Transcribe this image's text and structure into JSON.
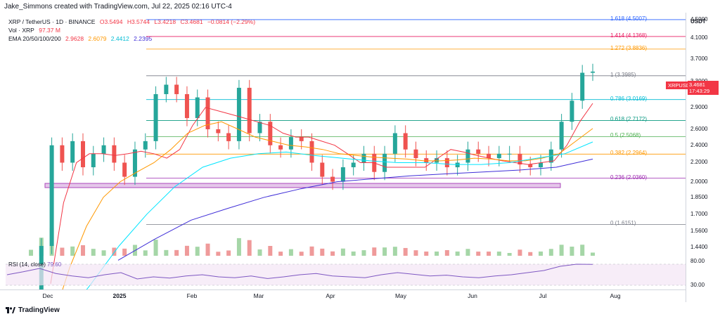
{
  "header": {
    "attribution": "Jake_Simmons created with TradingView.com, Jul 22, 2025 02:16 UTC-4",
    "symbol": "XRP / TetherUS · 1D · BINANCE",
    "o": "O3.5494",
    "h": "H3.5744",
    "l": "L3.4218",
    "c": "C3.4681",
    "chg": "−0.0814 (−2.29%)",
    "vol_label": "Vol · XRP",
    "vol_value": "97.37 M",
    "ema_label": "EMA 20/50/100/200",
    "ema_values": [
      "2.9628",
      "2.6079",
      "2.4412",
      "2.2395"
    ]
  },
  "colors": {
    "up": "#26a69a",
    "down": "#ef5350",
    "ema20": "#f23645",
    "ema50": "#ff9800",
    "ema100": "#00e5ff",
    "ema200": "#3f2ed8",
    "fib_1618": "#2962ff",
    "fib_1414": "#e91e63",
    "fib_1272": "#ff9800",
    "fib_1": "#787b86",
    "fib_0786": "#00bcd4",
    "fib_0618": "#089981",
    "fib_05": "#4caf50",
    "fib_0382": "#ff9800",
    "fib_0236": "#9c27b0",
    "fib_0": "#787b86",
    "rsi": "#7e57c2"
  },
  "y_axis": {
    "currency": "USDT",
    "ticks": [
      "4.5000",
      "4.1000",
      "3.7000",
      "3.3000",
      "2.9000",
      "2.6000",
      "2.4000",
      "2.2000",
      "2.0000",
      "1.8500",
      "1.7000",
      "1.5600",
      "1.4400"
    ],
    "scale": "log"
  },
  "x_axis": {
    "ticks": [
      "Dec",
      "2025",
      "Feb",
      "Mar",
      "Apr",
      "May",
      "Jun",
      "Jul",
      "Aug"
    ]
  },
  "price_tag": {
    "symbol": "XRPUSDT",
    "price": "3.4681",
    "countdown": "17:43:29"
  },
  "rsi": {
    "label": "RSI (14, close)",
    "value": "79.60",
    "ticks": [
      "80.00",
      "30.00"
    ]
  },
  "brand": "TradingView",
  "chart_data": {
    "type": "line",
    "title": "XRP / TetherUS · 1D · BINANCE",
    "fib_levels": [
      {
        "ratio": "1.618",
        "price": 4.5007,
        "label": "1.618 (4.5007)"
      },
      {
        "ratio": "1.414",
        "price": 4.1368,
        "label": "1.414 (4.1368)"
      },
      {
        "ratio": "1.272",
        "price": 3.8836,
        "label": "1.272 (3.8836)"
      },
      {
        "ratio": "1",
        "price": 3.3985,
        "label": "1 (3.3985)"
      },
      {
        "ratio": "0.786",
        "price": 3.0169,
        "label": "0.786 (3.0169)"
      },
      {
        "ratio": "0.618",
        "price": 2.7172,
        "label": "0.618 (2.7172)"
      },
      {
        "ratio": "0.5",
        "price": 2.5068,
        "label": "0.5 (2.5068)"
      },
      {
        "ratio": "0.382",
        "price": 2.2964,
        "label": "0.382 (2.2964)"
      },
      {
        "ratio": "0.236",
        "price": 2.036,
        "label": "0.236 (2.0360)"
      },
      {
        "ratio": "0",
        "price": 1.6151,
        "label": "0 (1.6151)"
      }
    ],
    "support_zone": [
      1.99,
      2.05
    ],
    "series": [
      {
        "name": "XRP / TetherUS",
        "values": [
          1.1,
          1.45,
          2.4,
          2.2,
          2.45,
          2.15,
          2.3,
          2.4,
          2.2,
          2.05,
          2.35,
          2.45,
          3.1,
          3.25,
          3.1,
          2.75,
          3.05,
          2.6,
          2.55,
          2.45,
          3.2,
          2.55,
          2.7,
          2.4,
          2.35,
          2.5,
          2.45,
          2.2,
          2.05,
          2.0,
          2.15,
          2.2,
          2.3,
          2.1,
          2.3,
          2.55,
          2.35,
          2.25,
          2.2,
          2.25,
          2.15,
          2.2,
          2.35,
          2.3,
          2.25,
          2.3,
          2.3,
          2.18,
          2.15,
          2.2,
          2.35,
          2.7,
          3.0,
          3.45,
          3.47
        ]
      },
      {
        "name": "EMA 20",
        "values": [
          1.2,
          1.8,
          2.2,
          2.3,
          2.3,
          2.28,
          2.3,
          2.33,
          2.3,
          2.25,
          2.35,
          2.65,
          2.9,
          2.85,
          2.8,
          2.75,
          2.7,
          2.65,
          2.55,
          2.5,
          2.5,
          2.45,
          2.4,
          2.3,
          2.2,
          2.2,
          2.15,
          2.15,
          2.15,
          2.15,
          2.25,
          2.35,
          2.32,
          2.28,
          2.25,
          2.22,
          2.2,
          2.18,
          2.2,
          2.22,
          2.4,
          2.7,
          2.96
        ]
      },
      {
        "name": "EMA 50",
        "values": [
          1.0,
          1.3,
          1.6,
          1.85,
          2.0,
          2.1,
          2.2,
          2.35,
          2.55,
          2.65,
          2.7,
          2.6,
          2.5,
          2.45,
          2.4,
          2.38,
          2.35,
          2.3,
          2.28,
          2.26,
          2.25,
          2.24,
          2.22,
          2.22,
          2.23,
          2.25,
          2.24,
          2.22,
          2.22,
          2.25,
          2.3,
          2.45,
          2.61
        ]
      },
      {
        "name": "EMA 100",
        "values": [
          1.0,
          1.2,
          1.45,
          1.7,
          1.95,
          2.15,
          2.25,
          2.3,
          2.32,
          2.28,
          2.25,
          2.22,
          2.2,
          2.2,
          2.18,
          2.18,
          2.2,
          2.25,
          2.3,
          2.44
        ]
      },
      {
        "name": "EMA 200",
        "values": [
          1.35,
          1.5,
          1.65,
          1.75,
          1.85,
          1.93,
          2.0,
          2.03,
          2.06,
          2.08,
          2.1,
          2.12,
          2.15,
          2.24
        ]
      }
    ],
    "rsi_values": [
      55,
      62,
      70,
      58,
      52,
      48,
      55,
      60,
      45,
      50,
      47,
      52,
      55,
      50,
      48,
      52,
      46,
      50,
      55,
      58,
      52,
      50,
      48,
      55,
      60,
      56,
      52,
      54,
      50,
      48,
      52,
      55,
      60,
      65,
      75,
      80,
      79.6
    ]
  }
}
